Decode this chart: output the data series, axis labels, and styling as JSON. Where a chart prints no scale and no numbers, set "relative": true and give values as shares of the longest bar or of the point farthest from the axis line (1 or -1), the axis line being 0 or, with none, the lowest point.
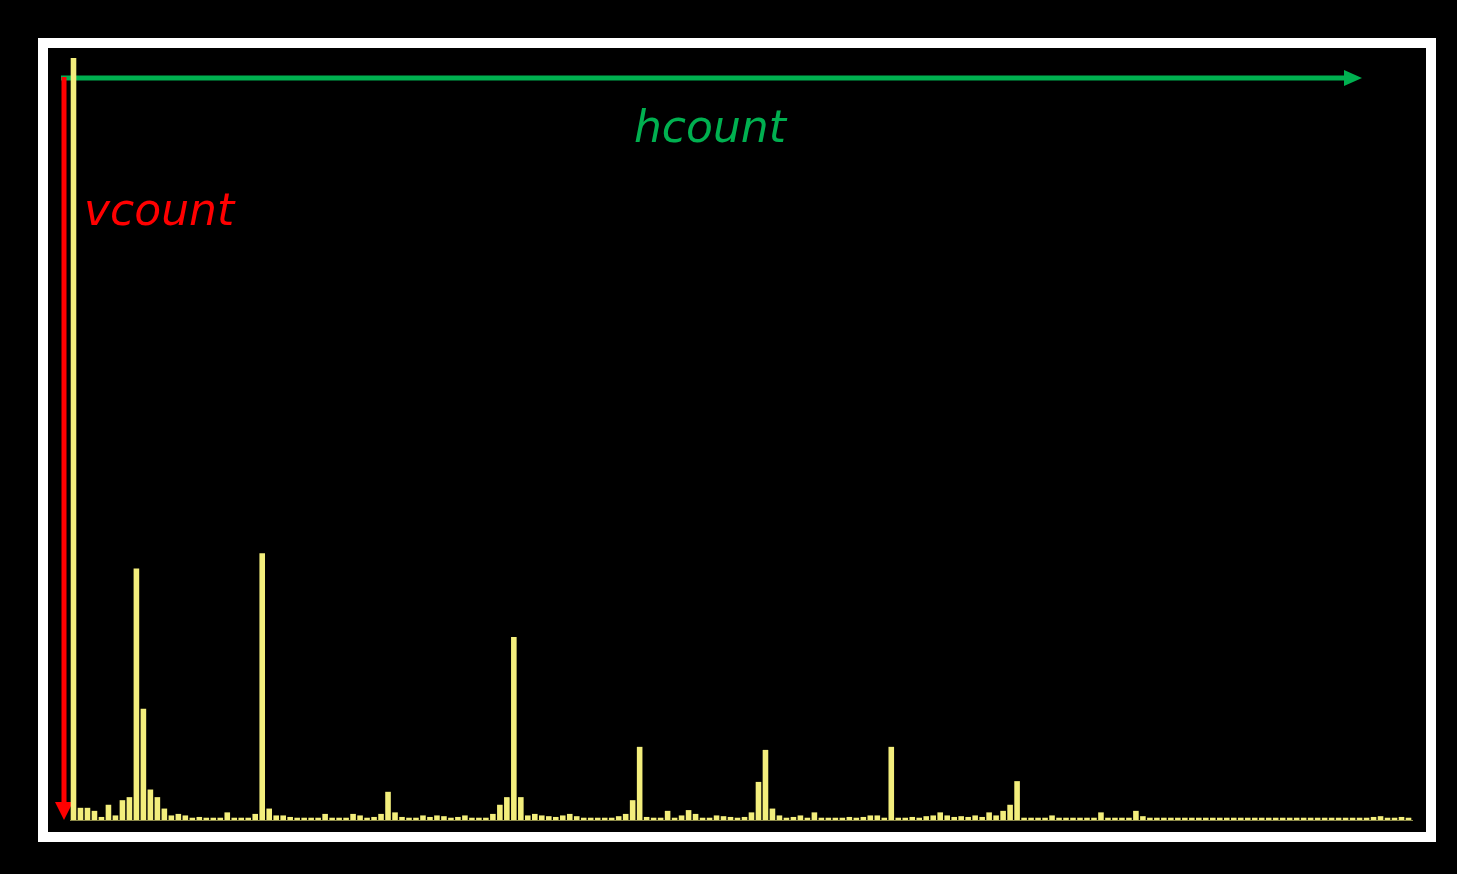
{
  "chart_data": {
    "type": "bar",
    "relative": true,
    "xlabel": "hcount",
    "ylabel": "vcount",
    "color": "#f3ee7c",
    "categories": [
      null,
      null,
      null,
      null,
      null,
      null,
      null,
      null,
      null,
      null,
      null,
      null,
      null,
      null,
      null,
      null,
      null,
      null,
      null,
      null,
      null,
      null,
      null,
      null,
      null,
      null,
      null,
      null,
      null,
      null,
      null,
      null,
      null,
      null,
      null,
      null,
      null,
      null,
      null,
      null,
      null,
      null,
      null,
      null,
      null,
      null,
      null,
      null,
      null,
      null,
      null,
      null,
      null,
      null,
      null,
      null,
      null,
      null,
      null,
      null,
      null,
      null,
      null,
      null,
      null,
      null,
      null,
      null,
      null,
      null,
      null,
      null,
      null,
      null,
      null,
      null,
      null,
      null,
      null,
      null,
      null,
      null,
      null,
      null,
      null,
      null,
      null,
      null,
      null,
      null,
      null,
      null,
      null,
      null,
      null,
      null,
      null,
      null,
      null,
      null,
      null,
      null,
      null,
      null,
      null,
      null,
      null,
      null,
      null,
      null,
      null,
      null,
      null,
      null,
      null,
      null,
      null,
      null,
      null,
      null,
      null,
      null,
      null,
      null,
      null,
      null,
      null,
      null,
      null,
      null,
      null,
      null,
      null,
      null,
      null,
      null,
      null,
      null,
      null,
      null,
      null,
      null,
      null,
      null,
      null,
      null,
      null,
      null,
      null,
      null,
      null,
      null,
      null,
      null,
      null,
      null,
      null,
      null,
      null,
      null,
      null,
      null,
      null,
      null,
      null,
      null,
      null,
      null,
      null,
      null,
      null,
      null,
      null,
      null,
      null,
      null,
      null,
      null,
      null,
      null,
      null,
      null,
      null,
      null,
      null,
      null,
      null,
      null,
      null,
      null,
      null,
      null
    ],
    "values": [
      1.0,
      0.016,
      0.016,
      0.012,
      0.004,
      0.02,
      0.006,
      0.026,
      0.03,
      0.33,
      0.146,
      0.04,
      0.03,
      0.015,
      0.006,
      0.008,
      0.006,
      0.003,
      0.004,
      0.003,
      0.003,
      0.003,
      0.01,
      0.003,
      0.003,
      0.003,
      0.008,
      0.35,
      0.015,
      0.006,
      0.006,
      0.004,
      0.003,
      0.003,
      0.003,
      0.003,
      0.008,
      0.003,
      0.003,
      0.003,
      0.008,
      0.006,
      0.003,
      0.004,
      0.008,
      0.037,
      0.01,
      0.004,
      0.003,
      0.003,
      0.006,
      0.004,
      0.006,
      0.005,
      0.003,
      0.004,
      0.006,
      0.003,
      0.003,
      0.003,
      0.008,
      0.02,
      0.03,
      0.24,
      0.03,
      0.006,
      0.008,
      0.006,
      0.005,
      0.004,
      0.006,
      0.008,
      0.005,
      0.003,
      0.003,
      0.003,
      0.003,
      0.003,
      0.005,
      0.008,
      0.026,
      0.096,
      0.004,
      0.003,
      0.003,
      0.012,
      0.003,
      0.006,
      0.013,
      0.008,
      0.003,
      0.003,
      0.006,
      0.005,
      0.004,
      0.003,
      0.004,
      0.01,
      0.05,
      0.092,
      0.015,
      0.006,
      0.003,
      0.004,
      0.006,
      0.003,
      0.01,
      0.003,
      0.003,
      0.003,
      0.003,
      0.004,
      0.003,
      0.004,
      0.006,
      0.006,
      0.003,
      0.096,
      0.003,
      0.003,
      0.004,
      0.003,
      0.005,
      0.006,
      0.01,
      0.006,
      0.004,
      0.005,
      0.004,
      0.006,
      0.004,
      0.01,
      0.006,
      0.012,
      0.02,
      0.051,
      0.003,
      0.003,
      0.003,
      0.003,
      0.006,
      0.003,
      0.003,
      0.003,
      0.003,
      0.003,
      0.003,
      0.01,
      0.003,
      0.003,
      0.003,
      0.003,
      0.012,
      0.005,
      0.003,
      0.003,
      0.003,
      0.003,
      0.003,
      0.003,
      0.003,
      0.003,
      0.003,
      0.003,
      0.003,
      0.003,
      0.003,
      0.003,
      0.003,
      0.003,
      0.003,
      0.003,
      0.003,
      0.003,
      0.003,
      0.003,
      0.003,
      0.003,
      0.003,
      0.003,
      0.003,
      0.003,
      0.003,
      0.003,
      0.003,
      0.003,
      0.004,
      0.005,
      0.003,
      0.003,
      0.004,
      0.003
    ]
  }
}
